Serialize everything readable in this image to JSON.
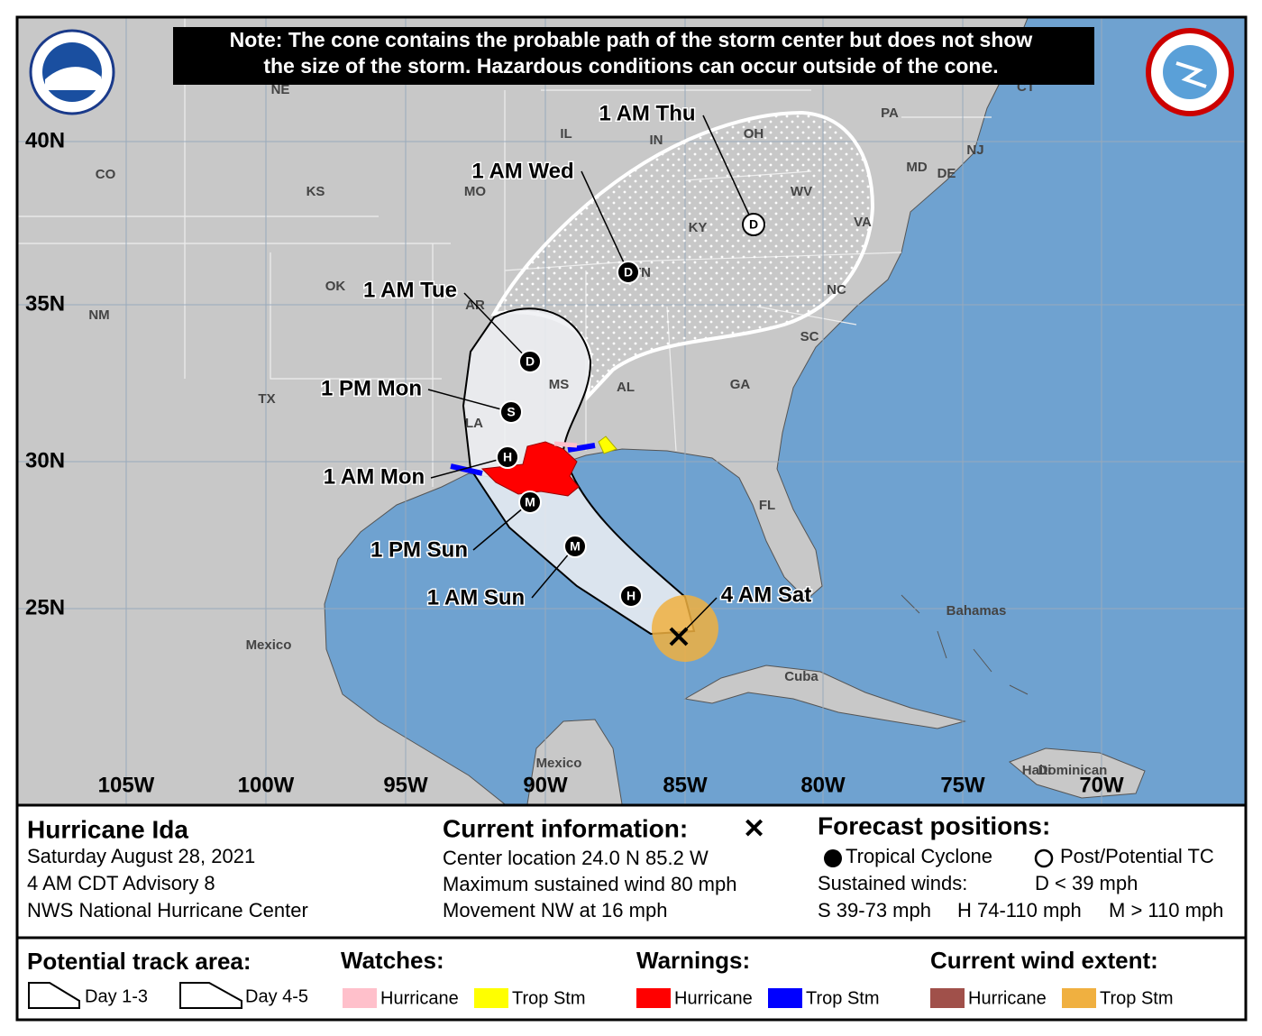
{
  "note": [
    "Note: The cone contains the probable path of the storm center but does not show",
    "the size of the storm. Hazardous conditions can occur outside of the cone."
  ],
  "map": {
    "latitude_labels": [
      "40N",
      "35N",
      "30N",
      "25N"
    ],
    "longitude_labels": [
      "105W",
      "100W",
      "95W",
      "90W",
      "85W",
      "80W",
      "75W",
      "70W"
    ],
    "place_labels": [
      "NE",
      "CO",
      "KS",
      "MO",
      "IL",
      "IN",
      "OH",
      "PA",
      "CT",
      "MD",
      "DE",
      "NJ",
      "WV",
      "VA",
      "KY",
      "TN",
      "NC",
      "SC",
      "GA",
      "AL",
      "MS",
      "LA",
      "AR",
      "OK",
      "TX",
      "NM",
      "FL",
      "Bahamas",
      "Cuba",
      "Mexico",
      "Mexico",
      "Haiti",
      "Dominican"
    ],
    "track": [
      {
        "label": "4 AM Sat"
      },
      {
        "symbol": "H"
      },
      {
        "label": "1 AM Sun",
        "symbol": "M"
      },
      {
        "label": "1 PM Sun",
        "symbol": "M"
      },
      {
        "label": "1 AM Mon",
        "symbol": "H"
      },
      {
        "label": "1 PM Mon",
        "symbol": "S"
      },
      {
        "label": "1 AM Tue",
        "symbol": "D"
      },
      {
        "label": "1 AM Wed",
        "symbol": "D"
      },
      {
        "label": "1 AM Thu",
        "symbol": "D"
      }
    ]
  },
  "storm": {
    "name": "Hurricane Ida",
    "lines": [
      "Saturday August 28, 2021",
      "4 AM CDT Advisory 8",
      "NWS National Hurricane Center"
    ]
  },
  "current": {
    "title": "Current information:",
    "lines": [
      "Center location 24.0 N 85.2 W",
      "Maximum sustained wind 80 mph",
      "Movement NW at 16 mph"
    ]
  },
  "forecast": {
    "title": "Forecast positions:",
    "tropical": "Tropical Cyclone",
    "post": "Post/Potential TC",
    "winds": "Sustained winds:",
    "d": "D < 39 mph",
    "s": "S 39-73 mph",
    "h": "H 74-110 mph",
    "m": "M > 110 mph"
  },
  "legend": {
    "track_title": "Potential track area:",
    "day13": "Day 1-3",
    "day45": "Day 4-5",
    "groups": [
      {
        "title": "Watches:",
        "items": [
          {
            "label": "Hurricane",
            "color": "#ffc0cb"
          },
          {
            "label": "Trop Stm",
            "color": "#ffff00"
          }
        ]
      },
      {
        "title": "Warnings:",
        "items": [
          {
            "label": "Hurricane",
            "color": "#ff0000"
          },
          {
            "label": "Trop Stm",
            "color": "#0000ff"
          }
        ]
      },
      {
        "title": "Current wind extent:",
        "items": [
          {
            "label": "Hurricane",
            "color": "#a0504a"
          },
          {
            "label": "Trop Stm",
            "color": "#f0b040"
          }
        ]
      }
    ]
  }
}
